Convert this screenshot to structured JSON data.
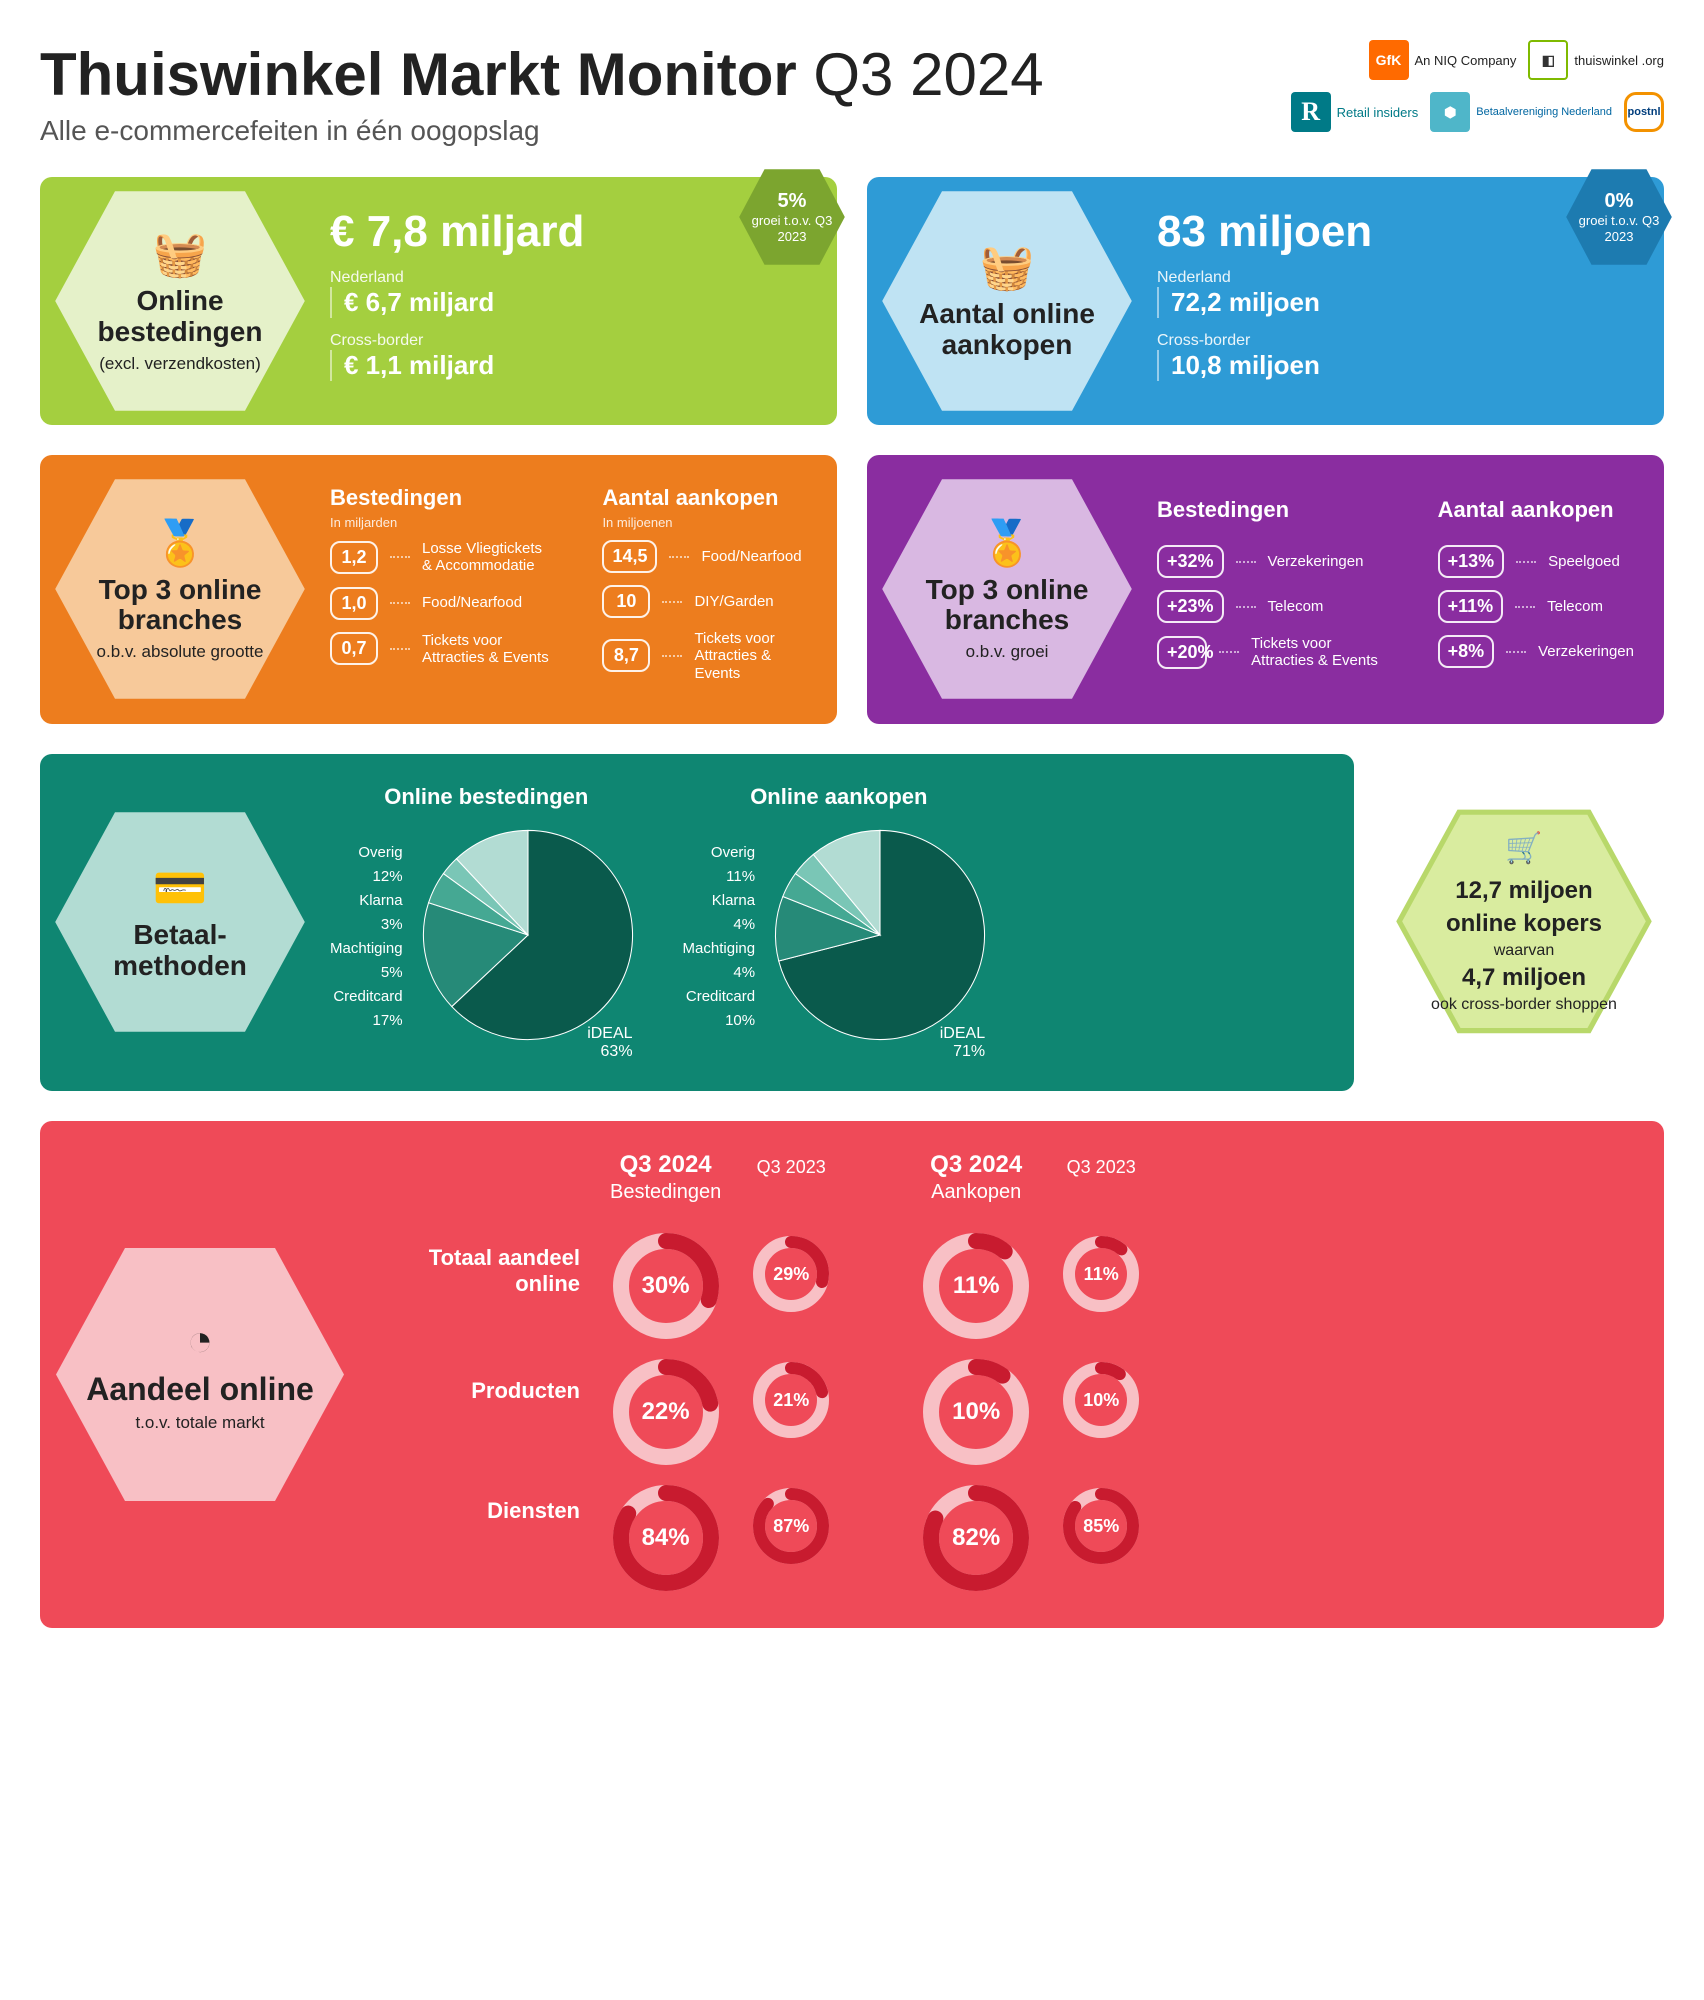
{
  "header": {
    "title_main": "Thuiswinkel Markt Monitor",
    "title_period": "Q3 2024",
    "subtitle": "Alle e-commercefeiten in één oogopslag"
  },
  "logos": {
    "gfk": "GfK",
    "gfk_sub": "An NIQ Company",
    "thuiswinkel": "thuiswinkel .org",
    "retail": "Retail insiders",
    "betaal": "Betaalvereniging Nederland",
    "postnl": "postnl"
  },
  "colors": {
    "green": "#a4cf3f",
    "green_light": "#e5f1c9",
    "green_badge": "#7ca52f",
    "blue": "#2e9bd6",
    "blue_light": "#bfe3f3",
    "blue_badge": "#1d7bb0",
    "orange": "#ed7d1e",
    "orange_light": "#f7c99a",
    "purple": "#8a2da0",
    "purple_light": "#d9b8e2",
    "teal": "#0f8672",
    "teal_light": "#b2dcd3",
    "teal_dark": "#0a5a4c",
    "teal_mid": "#268a78",
    "teal_l2": "#45a893",
    "teal_l3": "#7ac6b6",
    "lime": "#d9ec9f",
    "lime_border": "#b8d86a",
    "red": "#ef4a58",
    "red_light": "#f8c0c5",
    "red_dark": "#c81b2f"
  },
  "spend": {
    "hex_title": "Online bestedingen",
    "hex_sub": "(excl. verzendkosten)",
    "big": "€ 7,8 miljard",
    "nl_label": "Nederland",
    "nl_val": "€ 6,7 miljard",
    "cb_label": "Cross-border",
    "cb_val": "€ 1,1 miljard",
    "growth_pct": "5%",
    "growth_txt": "groei t.o.v. Q3 2023"
  },
  "purchases": {
    "hex_title": "Aantal online aankopen",
    "big": "83 miljoen",
    "nl_label": "Nederland",
    "nl_val": "72,2 miljoen",
    "cb_label": "Cross-border",
    "cb_val": "10,8 miljoen",
    "growth_pct": "0%",
    "growth_txt": "groei t.o.v. Q3 2023"
  },
  "top3_abs": {
    "hex_title": "Top 3 online branches",
    "hex_sub": "o.b.v. absolute grootte",
    "col1_head": "Bestedingen",
    "col1_unit": "In miljarden",
    "col1": [
      {
        "v": "1,2",
        "l": "Losse Vliegtickets & Accommodatie"
      },
      {
        "v": "1,0",
        "l": "Food/Nearfood"
      },
      {
        "v": "0,7",
        "l": "Tickets voor Attracties & Events"
      }
    ],
    "col2_head": "Aantal aankopen",
    "col2_unit": "In miljoenen",
    "col2": [
      {
        "v": "14,5",
        "l": "Food/Nearfood"
      },
      {
        "v": "10",
        "l": "DIY/Garden"
      },
      {
        "v": "8,7",
        "l": "Tickets voor Attracties & Events"
      }
    ]
  },
  "top3_growth": {
    "hex_title": "Top 3 online branches",
    "hex_sub": "o.b.v. groei",
    "col1_head": "Bestedingen",
    "col1": [
      {
        "v": "+32%",
        "l": "Verzekeringen"
      },
      {
        "v": "+23%",
        "l": "Telecom"
      },
      {
        "v": "+20%",
        "l": "Tickets voor Attracties & Events"
      }
    ],
    "col2_head": "Aantal aankopen",
    "col2": [
      {
        "v": "+13%",
        "l": "Speelgoed"
      },
      {
        "v": "+11%",
        "l": "Telecom"
      },
      {
        "v": "+8%",
        "l": "Verzekeringen"
      }
    ]
  },
  "payment": {
    "hex_title": "Betaal-methoden",
    "pie1_title": "Online bestedingen",
    "pie1": [
      {
        "l": "iDEAL",
        "v": 63
      },
      {
        "l": "Creditcard",
        "v": 17
      },
      {
        "l": "Machtiging",
        "v": 5
      },
      {
        "l": "Klarna",
        "v": 3
      },
      {
        "l": "Overig",
        "v": 12
      }
    ],
    "pie2_title": "Online aankopen",
    "pie2": [
      {
        "l": "iDEAL",
        "v": 71
      },
      {
        "l": "Creditcard",
        "v": 10
      },
      {
        "l": "Machtiging",
        "v": 4
      },
      {
        "l": "Klarna",
        "v": 4
      },
      {
        "l": "Overig",
        "v": 11
      }
    ]
  },
  "kopers": {
    "line1_b": "12,7 miljoen",
    "line1": "online kopers",
    "line2": "waarvan",
    "line3_b": "4,7 miljoen",
    "line3": "ook cross-border shoppen"
  },
  "share": {
    "hex_title": "Aandeel online",
    "hex_sub": "t.o.v. totale markt",
    "colA_head_b": "Q3 2024",
    "colA_head": "Bestedingen",
    "colB_head": "Q3 2023",
    "colC_head_b": "Q3 2024",
    "colC_head": "Aankopen",
    "colD_head": "Q3 2023",
    "rows": [
      {
        "l": "Totaal aandeel online",
        "a": 30,
        "b": 29,
        "c": 11,
        "d": 11
      },
      {
        "l": "Producten",
        "a": 22,
        "b": 21,
        "c": 10,
        "d": 10
      },
      {
        "l": "Diensten",
        "a": 84,
        "b": 87,
        "c": 82,
        "d": 85
      }
    ]
  }
}
